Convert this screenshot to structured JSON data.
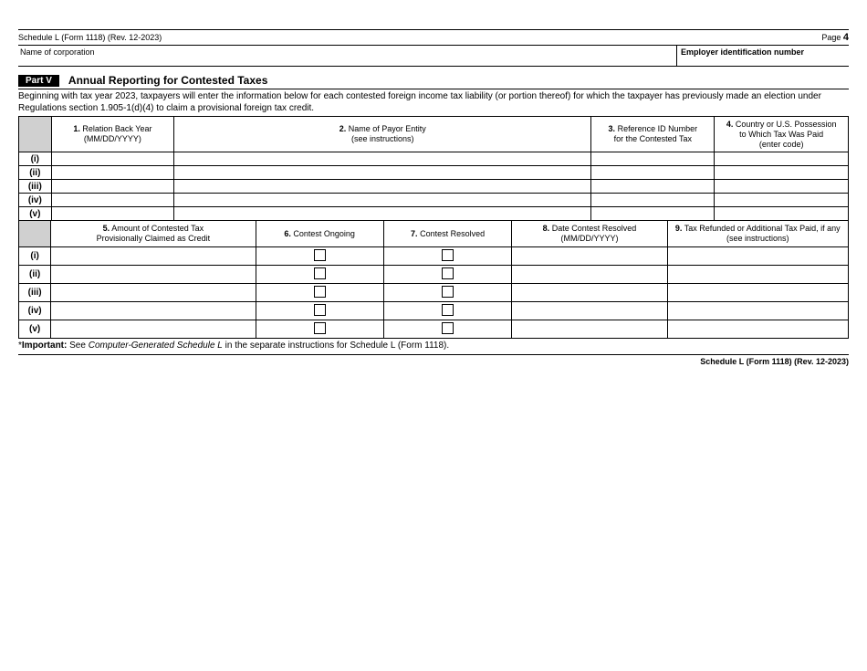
{
  "header": {
    "topline_left": "Schedule L (Form 1118) (Rev. 12-2023)",
    "page_label": "Page",
    "page_num": "4",
    "name_label": "Name of corporation",
    "ein_label": "Employer identification number"
  },
  "part": {
    "label": "Part V",
    "title": "Annual Reporting for Contested Taxes"
  },
  "intro": "Beginning with tax year 2023, taxpayers will enter the information below for each contested foreign income tax liability (or portion thereof) for which the taxpayer has previously made an election under Regulations section 1.905-1(d)(4) to claim a provisional foreign tax credit.",
  "table1": {
    "cols": [
      {
        "num": "1.",
        "text": "Relation Back Year\n(MM/DD/YYYY)"
      },
      {
        "num": "2.",
        "text": "Name of Payor Entity\n(see instructions)"
      },
      {
        "num": "3.",
        "text": "Reference ID Number\nfor the Contested Tax"
      },
      {
        "num": "4.",
        "text": "Country or U.S. Possession\nto Which Tax Was Paid\n(enter code)"
      }
    ]
  },
  "table2": {
    "cols": [
      {
        "num": "5.",
        "text": "Amount of Contested Tax\nProvisionally Claimed as Credit"
      },
      {
        "num": "6.",
        "text": "Contest Ongoing"
      },
      {
        "num": "7.",
        "text": "Contest Resolved"
      },
      {
        "num": "8.",
        "text": "Date Contest Resolved\n(MM/DD/YYYY)"
      },
      {
        "num": "9.",
        "text": "Tax Refunded or Additional Tax Paid, if any\n(see instructions)"
      }
    ]
  },
  "rows": [
    "(i)",
    "(ii)",
    "(iii)",
    "(iv)",
    "(v)"
  ],
  "footnote": {
    "star": "*",
    "bold": "Important:",
    "text1": " See ",
    "italic": "Computer-Generated Schedule L",
    "text2": " in the separate instructions for Schedule L (Form 1118)."
  },
  "footer": "Schedule L (Form 1118) (Rev. 12-2023)"
}
